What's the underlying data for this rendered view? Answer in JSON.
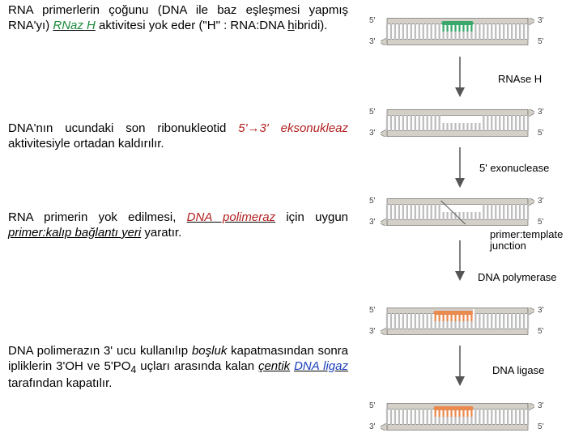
{
  "text": {
    "p1_a": "RNA primerlerin çoğunu (DNA ile baz eşleşmesi yapmış RNA'yı) ",
    "p1_rnazh": "RNaz H",
    "p1_b": " aktivitesi yok eder (\"H\" : RNA:DNA ",
    "p1_h": "h",
    "p1_c": "ibridi).",
    "p2_a": "DNA'nın ucundaki son ribonukleotid ",
    "p2_arrow": "5'→3' eksonukleaz",
    "p2_b": " aktivitesiyle ortadan kaldırılır.",
    "p3_a": "RNA primerin yok edilmesi, ",
    "p3_pol": "DNA polimeraz",
    "p3_b": " için uygun ",
    "p3_jx": "primer:kalıp bağlantı yeri",
    "p3_c": " yaratır.",
    "p4_a": "DNA polimerazın 3' ucu kullanılıp ",
    "p4_bos": "boşluk",
    "p4_b": " kapatmasından sonra ipliklerin 3'OH ve 5'PO",
    "p4_sub": "4",
    "p4_c": " uçları arasında kalan ",
    "p4_cen": "çentik",
    "p4_d": " ",
    "p4_dna": "DNA ligaz",
    "p4_e": " tarafından kapatılır."
  },
  "enzymes": {
    "rnaseh": "RNAse H",
    "exo": "5' exonuclease",
    "ptj1": "primer:template",
    "ptj2": "junction",
    "pol": "DNA polymerase",
    "ligase": "DNA ligase"
  },
  "colors": {
    "rnazh": "#1a8a3a",
    "exo": "#b22020",
    "pol": "#b22020",
    "ligase": "#1a3fbb",
    "dna_rung": "#bdbdbd",
    "dna_backbone": "#bdbdbd",
    "dna_border": "#6f6f6f",
    "rna_primer": "#39a96b",
    "new_dna": "#e98a4f",
    "arrowhead": "#d4d0c8"
  },
  "figures": {
    "width": 190,
    "height": 34,
    "rung_count": 36,
    "primer_start": 14,
    "primer_end": 22,
    "gap_start": 14,
    "gap_end": 24,
    "orange_start": 12,
    "orange_end": 22
  }
}
